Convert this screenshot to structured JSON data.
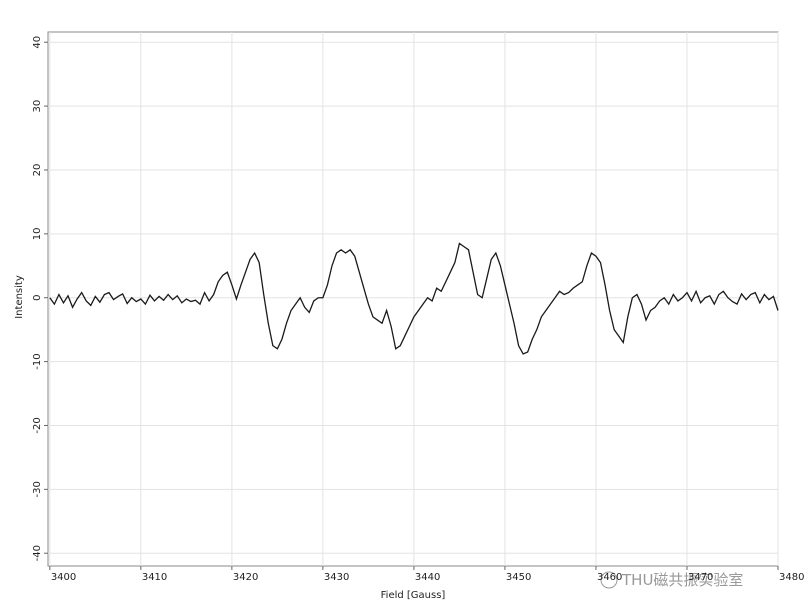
{
  "chart_data": {
    "type": "line",
    "x_label": "Field [Gauss]",
    "y_label": "Intensity",
    "watermark": "THU磁共振实验室",
    "color": "#1a1a1a",
    "grid": true,
    "xlim": [
      3399.8,
      3480
    ],
    "ylim": [
      -42,
      41.6
    ],
    "xticks": [
      3400,
      3410,
      3420,
      3430,
      3440,
      3450,
      3460,
      3470,
      3480
    ],
    "yticks": [
      -40,
      -30,
      -20,
      -10,
      0,
      10,
      20,
      30,
      40
    ],
    "x": [
      3400,
      3400.5,
      3401,
      3401.5,
      3402,
      3402.5,
      3403,
      3403.5,
      3404,
      3404.5,
      3405,
      3405.5,
      3406,
      3406.5,
      3407,
      3407.5,
      3408,
      3408.5,
      3409,
      3409.5,
      3410,
      3410.5,
      3411,
      3411.5,
      3412,
      3412.5,
      3413,
      3413.5,
      3414,
      3414.5,
      3415,
      3415.5,
      3416,
      3416.5,
      3417,
      3417.5,
      3418,
      3418.5,
      3419,
      3419.5,
      3420,
      3420.5,
      3421,
      3421.5,
      3422,
      3422.5,
      3423,
      3423.5,
      3424,
      3424.5,
      3425,
      3425.5,
      3426,
      3426.5,
      3427,
      3427.5,
      3428,
      3428.5,
      3429,
      3429.5,
      3430,
      3430.5,
      3431,
      3431.5,
      3432,
      3432.5,
      3433,
      3433.5,
      3434,
      3434.5,
      3435,
      3435.5,
      3436,
      3436.5,
      3437,
      3437.5,
      3438,
      3438.5,
      3439,
      3439.5,
      3440,
      3440.5,
      3441,
      3441.5,
      3442,
      3442.5,
      3443,
      3443.5,
      3444,
      3444.5,
      3445,
      3445.5,
      3446,
      3446.5,
      3447,
      3447.5,
      3448,
      3448.5,
      3449,
      3449.5,
      3450,
      3450.5,
      3451,
      3451.5,
      3452,
      3452.5,
      3453,
      3453.5,
      3454,
      3454.5,
      3455,
      3455.5,
      3456,
      3456.5,
      3457,
      3457.5,
      3458,
      3458.5,
      3459,
      3459.5,
      3460,
      3460.5,
      3461,
      3461.5,
      3462,
      3462.5,
      3463,
      3463.5,
      3464,
      3464.5,
      3465,
      3465.5,
      3466,
      3466.5,
      3467,
      3467.5,
      3468,
      3468.5,
      3469,
      3469.5,
      3470,
      3470.5,
      3471,
      3471.5,
      3472,
      3472.5,
      3473,
      3473.5,
      3474,
      3474.5,
      3475,
      3475.5,
      3476,
      3476.5,
      3477,
      3477.5,
      3478,
      3478.5,
      3479,
      3479.5,
      3480
    ],
    "values": [
      0,
      -1,
      0.5,
      -0.8,
      0.3,
      -1.5,
      -0.2,
      0.8,
      -0.5,
      -1.2,
      0.2,
      -0.7,
      0.5,
      0.8,
      -0.3,
      0.2,
      0.6,
      -0.9,
      0,
      -0.6,
      -0.2,
      -1,
      0.4,
      -0.5,
      0.2,
      -0.4,
      0.5,
      -0.3,
      0.3,
      -0.8,
      -0.2,
      -0.6,
      -0.4,
      -1,
      0.8,
      -0.5,
      0.5,
      2.5,
      3.5,
      4,
      2,
      -0.2,
      2,
      4,
      6,
      7,
      5.5,
      0.5,
      -4,
      -7.5,
      -8,
      -6.5,
      -4,
      -2,
      -1,
      0,
      -1.5,
      -2.3,
      -0.5,
      0,
      0,
      2,
      5,
      7,
      7.5,
      7,
      7.5,
      6.5,
      4,
      1.5,
      -1,
      -3,
      -3.5,
      -4,
      -2,
      -4.5,
      -8,
      -7.5,
      -6,
      -4.5,
      -3,
      -2,
      -1,
      0,
      -0.5,
      1.5,
      1,
      2.5,
      4,
      5.5,
      8.5,
      8,
      7.5,
      4,
      0.5,
      0,
      3,
      6,
      7,
      5,
      2,
      -1,
      -4,
      -7.5,
      -8.8,
      -8.5,
      -6.5,
      -5,
      -3,
      -2,
      -1,
      0,
      1,
      0.5,
      0.8,
      1.5,
      2,
      2.5,
      5,
      7,
      6.5,
      5.5,
      2,
      -2,
      -5,
      -6,
      -7,
      -3,
      0,
      0.5,
      -1,
      -3.5,
      -2,
      -1.5,
      -0.5,
      0,
      -1,
      0.5,
      -0.5,
      0,
      0.8,
      -0.5,
      1,
      -0.8,
      0,
      0.3,
      -1,
      0.5,
      1,
      0,
      -0.6,
      -1,
      0.6,
      -0.3,
      0.5,
      0.8,
      -0.8,
      0.5,
      -0.3,
      0.2,
      -2
    ]
  }
}
